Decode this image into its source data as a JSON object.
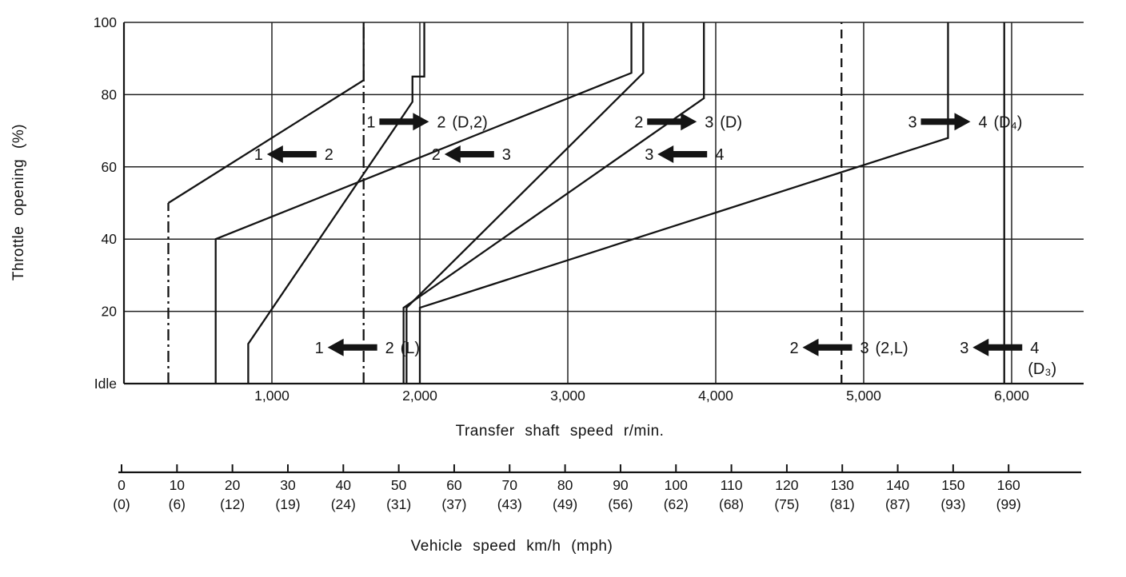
{
  "figure": {
    "bg": "#ffffff",
    "ink": "#141414",
    "grid_color": "#222222"
  },
  "chart_data": {
    "type": "line",
    "title": "",
    "xlabel": "Transfer shaft speed r/min.",
    "ylabel": "Throttle opening (%)",
    "x2label": "Vehicle speed km/h (mph)",
    "xlim": [
      0,
      6490
    ],
    "ylim": [
      0,
      100
    ],
    "grid": true,
    "x_ticks": [
      1000,
      2000,
      3000,
      4000,
      5000,
      6000
    ],
    "x_tick_labels": [
      "1,000",
      "2,000",
      "3,000",
      "4,000",
      "5,000",
      "6,000"
    ],
    "y_ticks": [
      0,
      20,
      40,
      60,
      80,
      100
    ],
    "y_tick_labels": [
      "Idle",
      "20",
      "40",
      "60",
      "80",
      "100"
    ],
    "x2_axis": {
      "kmh_ticks": [
        0,
        10,
        20,
        30,
        40,
        50,
        60,
        70,
        80,
        90,
        100,
        110,
        120,
        130,
        140,
        150,
        160
      ],
      "kmh_labels": [
        "0",
        "10",
        "20",
        "30",
        "40",
        "50",
        "60",
        "70",
        "80",
        "90",
        "100",
        "110",
        "120",
        "130",
        "140",
        "150",
        "160"
      ],
      "mph_labels": [
        "(0)",
        "(6)",
        "(12)",
        "(19)",
        "(24)",
        "(31)",
        "(37)",
        "(43)",
        "(49)",
        "(56)",
        "(62)",
        "(68)",
        "(75)",
        "(81)",
        "(87)",
        "(93)",
        "(99)"
      ]
    },
    "series": [
      {
        "name": "1-2 upshift (D,2)",
        "style": "solid",
        "points": [
          [
            840,
            0
          ],
          [
            840,
            11
          ],
          [
            1950,
            78
          ],
          [
            1950,
            85
          ],
          [
            2030,
            85
          ],
          [
            2030,
            100
          ]
        ]
      },
      {
        "name": "1-2 downshift closed throttle (D)",
        "style": "dashdot",
        "points": [
          [
            300,
            0
          ],
          [
            300,
            50
          ]
        ]
      },
      {
        "name": "1-2 downshift (D)",
        "style": "solid",
        "points": [
          [
            300,
            50
          ],
          [
            1620,
            84
          ],
          [
            1620,
            100
          ]
        ]
      },
      {
        "name": "1-2 downshift (L)",
        "style": "dashdot",
        "points": [
          [
            1620,
            0
          ],
          [
            1620,
            100
          ]
        ]
      },
      {
        "name": "2-3 upshift (D)",
        "style": "solid",
        "points": [
          [
            1910,
            0
          ],
          [
            1910,
            21
          ],
          [
            3510,
            86
          ],
          [
            3510,
            100
          ]
        ]
      },
      {
        "name": "2-3 downshift (D)",
        "style": "solid",
        "points": [
          [
            620,
            0
          ],
          [
            620,
            40
          ],
          [
            3430,
            86
          ],
          [
            3430,
            100
          ]
        ]
      },
      {
        "name": "2-3 downshift (2,L)",
        "style": "dashed",
        "points": [
          [
            4850,
            0
          ],
          [
            4850,
            100
          ]
        ]
      },
      {
        "name": "3-4 upshift (D4)",
        "style": "solid",
        "points": [
          [
            2000,
            0
          ],
          [
            2000,
            21
          ],
          [
            5570,
            68
          ],
          [
            5570,
            100
          ]
        ]
      },
      {
        "name": "3-4 downshift (D)",
        "style": "solid",
        "points": [
          [
            1890,
            0
          ],
          [
            1890,
            21
          ],
          [
            3920,
            79
          ],
          [
            3920,
            100
          ]
        ]
      },
      {
        "name": "3-4 downshift (D3)",
        "style": "solid",
        "points": [
          [
            5950,
            0
          ],
          [
            5950,
            100
          ]
        ]
      }
    ],
    "annotations": [
      {
        "left": "1",
        "right": "2",
        "suffix": "(D,2)",
        "dir": "right",
        "rpm": 1640,
        "throttle": 72.5
      },
      {
        "left": "2",
        "right": "3",
        "suffix": "(D)",
        "dir": "right",
        "rpm": 3450,
        "throttle": 72.5
      },
      {
        "left": "3",
        "right": "4",
        "suffix": "(D₄)",
        "dir": "right",
        "rpm": 5300,
        "throttle": 72.5
      },
      {
        "left": "1",
        "right": "2",
        "suffix": "",
        "dir": "left",
        "rpm": 880,
        "throttle": 63.5
      },
      {
        "left": "2",
        "right": "3",
        "suffix": "",
        "dir": "left",
        "rpm": 2080,
        "throttle": 63.5
      },
      {
        "left": "3",
        "right": "4",
        "suffix": "",
        "dir": "left",
        "rpm": 3520,
        "throttle": 63.5
      },
      {
        "left": "1",
        "right": "2",
        "suffix": "(L)",
        "dir": "left",
        "rpm": 1290,
        "throttle": 10
      },
      {
        "left": "2",
        "right": "3",
        "suffix": "(2,L)",
        "dir": "left",
        "rpm": 4500,
        "throttle": 10
      },
      {
        "left": "3",
        "right": "4",
        "suffix": "",
        "suffix_below": "(D₃)",
        "dir": "left",
        "rpm": 5650,
        "throttle": 10
      }
    ]
  }
}
